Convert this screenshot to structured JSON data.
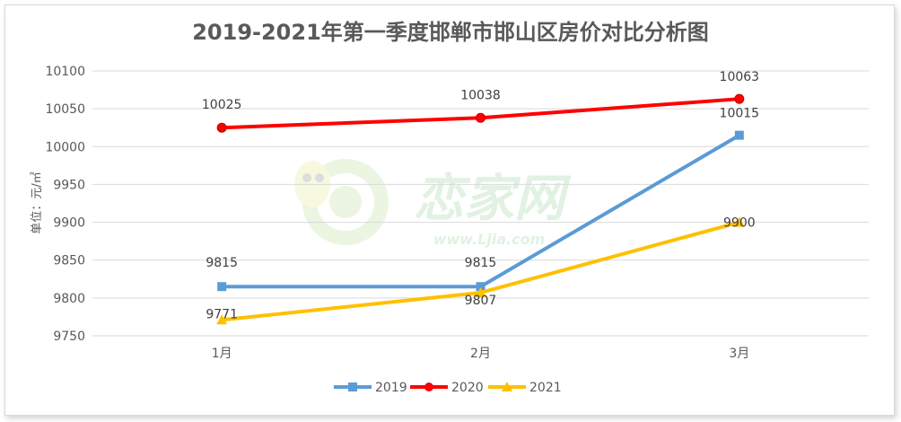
{
  "chart_data": {
    "type": "line",
    "title": "2019-2021年第一季度邯郸市邯山区房价对比分析图",
    "ylabel": "单位：元/㎡",
    "xlabel": "",
    "categories": [
      "1月",
      "2月",
      "3月"
    ],
    "ylim": [
      9750,
      10100
    ],
    "yticks": [
      9750,
      9800,
      9850,
      9900,
      9950,
      10000,
      10050,
      10100
    ],
    "grid": true,
    "legend": "bottom",
    "series": [
      {
        "name": "2019",
        "values": [
          9815,
          9815,
          10015
        ],
        "color": "#5B9BD5",
        "marker": "square"
      },
      {
        "name": "2020",
        "values": [
          10025,
          10038,
          10063
        ],
        "color": "#FF0000",
        "marker": "circle"
      },
      {
        "name": "2021",
        "values": [
          9771,
          9807,
          9900
        ],
        "color": "#FFC000",
        "marker": "triangle"
      }
    ]
  },
  "watermark": {
    "brand_text": "恋家网",
    "url_text": "www.Ljia.com",
    "icon": "snail-logo-icon"
  }
}
